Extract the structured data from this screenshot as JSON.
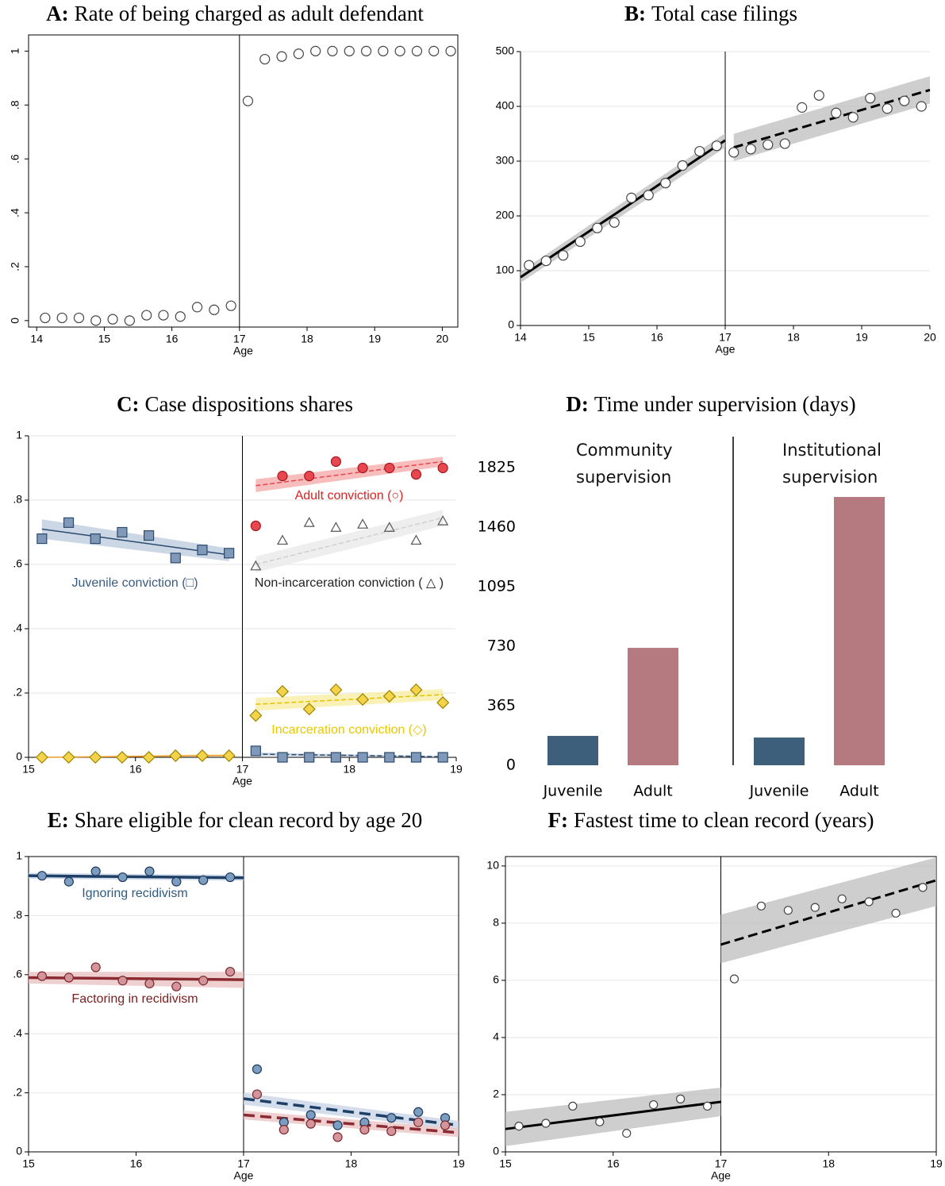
{
  "chart_data": [
    {
      "type": "scatter",
      "label": "A:",
      "title": "Rate of being charged as adult defendant",
      "xlabel": "Age",
      "cutoff": 17,
      "xlim": [
        13.88,
        20.23
      ],
      "ylim": [
        -0.024,
        1.06
      ],
      "xticks": [
        14,
        15,
        16,
        17,
        18,
        19,
        20
      ],
      "yticks": [
        0,
        {
          "value": 0.2,
          "label": ".2"
        },
        {
          "value": 0.4,
          "label": ".4"
        },
        {
          "value": 0.6,
          "label": ".6"
        },
        {
          "value": 0.8,
          "label": ".8"
        },
        1
      ],
      "ytick_rotate": true,
      "grid": false,
      "series": [
        {
          "marker": "circle",
          "color": "#ffffff",
          "stroke": "#444444",
          "x": [
            14.125,
            14.375,
            14.625,
            14.875,
            15.125,
            15.375,
            15.625,
            15.875,
            16.125,
            16.375,
            16.625,
            16.875,
            17.125,
            17.375,
            17.625,
            17.875,
            18.125,
            18.375,
            18.625,
            18.875,
            19.125,
            19.375,
            19.625,
            19.875,
            20.125
          ],
          "values": [
            0.01,
            0.01,
            0.01,
            0,
            0.005,
            0,
            0.02,
            0.02,
            0.015,
            0.05,
            0.04,
            0.055,
            0.815,
            0.97,
            0.98,
            0.99,
            1,
            1,
            1,
            1,
            1,
            1,
            1,
            1,
            1
          ]
        }
      ]
    },
    {
      "type": "scatter",
      "label": "B:",
      "title": "Total case filings",
      "xlabel": "Age",
      "cutoff": 17,
      "xlim": [
        14,
        20
      ],
      "ylim": [
        0,
        500
      ],
      "xticks": [
        14,
        15,
        16,
        17,
        18,
        19,
        20
      ],
      "yticks": [
        0,
        100,
        200,
        300,
        400,
        500
      ],
      "grid": true,
      "series": [
        {
          "marker": "circle",
          "color": "#ffffff",
          "stroke": "#444444",
          "line_color": "#000000",
          "band_color": "#bdbdbd",
          "x": [
            14.125,
            14.375,
            14.625,
            14.875,
            15.125,
            15.375,
            15.625,
            15.875,
            16.125,
            16.375,
            16.625,
            16.875,
            17.125,
            17.375,
            17.625,
            17.875,
            18.125,
            18.375,
            18.625,
            18.875,
            19.125,
            19.375,
            19.625,
            19.875
          ],
          "values": [
            110,
            118,
            128,
            153,
            178,
            188,
            233,
            238,
            260,
            292,
            318,
            328,
            316,
            322,
            330,
            332,
            398,
            420,
            388,
            380,
            415,
            396,
            410,
            400
          ],
          "fits": [
            {
              "x": [
                14,
                17
              ],
              "y": [
                88,
                338
              ],
              "lo": [
                78,
                325
              ],
              "hi": [
                98,
                351
              ]
            },
            {
              "x": [
                17.125,
                20
              ],
              "y": [
                325,
                430
              ],
              "lo": [
                300,
                405
              ],
              "hi": [
                350,
                455
              ],
              "dashed": true
            }
          ]
        }
      ]
    },
    {
      "type": "scatter",
      "label": "C:",
      "title": "Case dispositions shares",
      "xlabel": "Age",
      "cutoff": 17,
      "xlim": [
        15,
        19
      ],
      "ylim": [
        0,
        1
      ],
      "xticks": [
        15,
        16,
        17,
        18,
        19
      ],
      "yticks": [
        0,
        {
          "value": 0.2,
          "label": ".2"
        },
        {
          "value": 0.4,
          "label": ".4"
        },
        {
          "value": 0.6,
          "label": ".6"
        },
        {
          "value": 0.8,
          "label": ".8"
        },
        1
      ],
      "grid": true,
      "series": [
        {
          "name": "Juvenile conviction (□)",
          "marker": "square",
          "color": "#8099b8",
          "stroke": "#2c4a6e",
          "line_color": "#2c4a6e",
          "band_color": "#b9c9dc",
          "label_color": "#3a5a80",
          "x": [
            15.125,
            15.375,
            15.625,
            15.875,
            16.125,
            16.375,
            16.625,
            16.875,
            17.125,
            17.375,
            17.625,
            17.875,
            18.125,
            18.375,
            18.625,
            18.875
          ],
          "values": [
            0.68,
            0.73,
            0.68,
            0.7,
            0.69,
            0.62,
            0.645,
            0.635,
            0.02,
            0,
            0,
            0,
            0,
            0,
            0,
            0
          ],
          "fits": [
            {
              "x": [
                15.125,
                16.875
              ],
              "y": [
                0.71,
                0.63
              ],
              "lo": [
                0.68,
                0.61
              ],
              "hi": [
                0.74,
                0.65
              ]
            },
            {
              "x": [
                17.125,
                18.875
              ],
              "y": [
                0.01,
                0.002
              ],
              "lo": [
                0.005,
                0
              ],
              "hi": [
                0.015,
                0.004
              ],
              "dashed": true
            }
          ]
        },
        {
          "name": "Adult conviction (○)",
          "marker": "circle",
          "color": "#e8474f",
          "stroke": "#a01a20",
          "line_color": "#e8474f",
          "band_color": "#f4a6a6",
          "label_color": "#e02020",
          "x": [
            15.125,
            15.375,
            15.625,
            15.875,
            16.125,
            16.375,
            16.625,
            16.875,
            17.125,
            17.375,
            17.625,
            17.875,
            18.125,
            18.375,
            18.625,
            18.875
          ],
          "values": [
            null,
            null,
            null,
            null,
            null,
            null,
            null,
            null,
            0.72,
            0.875,
            0.875,
            0.92,
            0.9,
            0.9,
            0.88,
            0.9
          ],
          "fits": [
            {
              "x": [
                17.125,
                18.875
              ],
              "y": [
                0.845,
                0.92
              ],
              "lo": [
                0.825,
                0.905
              ],
              "hi": [
                0.865,
                0.935
              ],
              "dashed": true
            }
          ]
        },
        {
          "name": "Non-incarceration conviction ( △ )",
          "marker": "triangle",
          "color": "none",
          "stroke": "#555555",
          "line_color": "#cfcfcf",
          "band_color": "#e8e8e8",
          "label_color": "#222222",
          "x": [
            15.125,
            15.375,
            15.625,
            15.875,
            16.125,
            16.375,
            16.625,
            16.875,
            17.125,
            17.375,
            17.625,
            17.875,
            18.125,
            18.375,
            18.625,
            18.875
          ],
          "values": [
            null,
            null,
            null,
            null,
            null,
            null,
            null,
            null,
            0.595,
            0.675,
            0.73,
            0.715,
            0.725,
            0.715,
            0.675,
            0.735
          ],
          "fits": [
            {
              "x": [
                17.125,
                18.875
              ],
              "y": [
                0.6,
                0.745
              ],
              "lo": [
                0.575,
                0.72
              ],
              "hi": [
                0.625,
                0.77
              ],
              "dashed": true
            }
          ]
        },
        {
          "name": "Incarceration conviction (◇)",
          "marker": "diamond",
          "color": "#f2d34a",
          "stroke": "#a08400",
          "line_color": "#e6c200",
          "band_color": "#f7ec9e",
          "label_color": "#e8c800",
          "x": [
            15.125,
            15.375,
            15.625,
            15.875,
            16.125,
            16.375,
            16.625,
            16.875,
            17.125,
            17.375,
            17.625,
            17.875,
            18.125,
            18.375,
            18.625,
            18.875
          ],
          "values": [
            0,
            0,
            0,
            0,
            0,
            0.005,
            0.005,
            0.005,
            0.13,
            0.205,
            0.15,
            0.21,
            0.18,
            0.19,
            0.21,
            0.17
          ],
          "fits": [
            {
              "x": [
                15.125,
                16.875
              ],
              "y": [
                0,
                0.006
              ],
              "lo": [
                0,
                0.002
              ],
              "hi": [
                0.002,
                0.01
              ],
              "color": "#f29a2e"
            },
            {
              "x": [
                17.125,
                18.875
              ],
              "y": [
                0.165,
                0.195
              ],
              "lo": [
                0.145,
                0.178
              ],
              "hi": [
                0.185,
                0.212
              ],
              "dashed": true
            }
          ]
        }
      ]
    },
    {
      "type": "bar",
      "label": "D:",
      "title": "Time under supervision (days)",
      "categories": [
        "Community supervision",
        "Institutional supervision"
      ],
      "ylim": [
        0,
        2015
      ],
      "yticks": [
        0,
        365,
        730,
        1095,
        1460,
        1825
      ],
      "series": [
        {
          "name": "Juvenile",
          "color": "#3d5f7c",
          "values": [
            180,
            170
          ]
        },
        {
          "name": "Adult",
          "color": "#b47a80",
          "values": [
            720,
            1645
          ]
        }
      ]
    },
    {
      "type": "scatter",
      "label": "E:",
      "title": "Share eligible for clean record by age 20",
      "xlabel": "Age",
      "cutoff": 17,
      "xlim": [
        15,
        19
      ],
      "ylim": [
        0,
        1
      ],
      "xticks": [
        15,
        16,
        17,
        18,
        19
      ],
      "yticks": [
        0,
        {
          "value": 0.2,
          "label": ".2"
        },
        {
          "value": 0.4,
          "label": ".4"
        },
        {
          "value": 0.6,
          "label": ".6"
        },
        {
          "value": 0.8,
          "label": ".8"
        },
        1
      ],
      "grid": true,
      "series": [
        {
          "name": "Ignoring recidivism",
          "marker": "circle",
          "color": "#7c9cc0",
          "stroke": "#1e3a5c",
          "line_color": "#1e3f66",
          "band_color": "#c4d2e4",
          "label_color": "#2e5a80",
          "x": [
            15.125,
            15.375,
            15.625,
            15.875,
            16.125,
            16.375,
            16.625,
            16.875,
            17.125,
            17.375,
            17.625,
            17.875,
            18.125,
            18.375,
            18.625,
            18.875
          ],
          "values": [
            0.935,
            0.915,
            0.95,
            0.93,
            0.95,
            0.915,
            0.92,
            0.93,
            0.28,
            0.1,
            0.125,
            0.09,
            0.1,
            0.115,
            0.135,
            0.115
          ],
          "fits": [
            {
              "x": [
                15,
                17
              ],
              "y": [
                0.935,
                0.928
              ],
              "lo": [
                0.925,
                0.918
              ],
              "hi": [
                0.945,
                0.938
              ]
            },
            {
              "x": [
                17,
                19
              ],
              "y": [
                0.18,
                0.09
              ],
              "lo": [
                0.16,
                0.075
              ],
              "hi": [
                0.2,
                0.105
              ],
              "dashed": true
            }
          ]
        },
        {
          "name": "Factoring in recidivism",
          "marker": "circle",
          "color": "#d4959a",
          "stroke": "#7a2a2e",
          "line_color": "#8b2a30",
          "band_color": "#eac0c2",
          "label_color": "#7a2020",
          "x": [
            15.125,
            15.375,
            15.625,
            15.875,
            16.125,
            16.375,
            16.625,
            16.875,
            17.125,
            17.375,
            17.625,
            17.875,
            18.125,
            18.375,
            18.625,
            18.875
          ],
          "values": [
            0.595,
            0.59,
            0.625,
            0.58,
            0.57,
            0.56,
            0.58,
            0.61,
            0.195,
            0.075,
            0.095,
            0.05,
            0.075,
            0.07,
            0.1,
            0.09
          ],
          "fits": [
            {
              "x": [
                15,
                17
              ],
              "y": [
                0.59,
                0.583
              ],
              "lo": [
                0.57,
                0.555
              ],
              "hi": [
                0.61,
                0.61
              ]
            },
            {
              "x": [
                17,
                19
              ],
              "y": [
                0.125,
                0.065
              ],
              "lo": [
                0.11,
                0.05
              ],
              "hi": [
                0.14,
                0.08
              ],
              "dashed": true
            }
          ]
        }
      ]
    },
    {
      "type": "scatter",
      "label": "F:",
      "title": "Fastest time to clean record (years)",
      "xlabel": "Age",
      "cutoff": 17,
      "xlim": [
        15,
        19
      ],
      "ylim": [
        0,
        10.33
      ],
      "xticks": [
        15,
        16,
        17,
        18,
        19
      ],
      "yticks": [
        0,
        2,
        4,
        6,
        8,
        10
      ],
      "grid": true,
      "series": [
        {
          "marker": "circle",
          "color": "#ffffff",
          "stroke": "#444444",
          "line_color": "#000000",
          "band_color": "#bdbdbd",
          "x": [
            15.125,
            15.375,
            15.625,
            15.875,
            16.125,
            16.375,
            16.625,
            16.875,
            17.125,
            17.375,
            17.625,
            17.875,
            18.125,
            18.375,
            18.625,
            18.875
          ],
          "values": [
            0.9,
            1.0,
            1.6,
            1.05,
            0.65,
            1.65,
            1.85,
            1.6,
            6.05,
            8.6,
            8.45,
            8.55,
            8.85,
            8.75,
            8.35,
            9.25
          ],
          "fits": [
            {
              "x": [
                15,
                17
              ],
              "y": [
                0.8,
                1.75
              ],
              "lo": [
                0.2,
                1.25
              ],
              "hi": [
                1.4,
                2.25
              ]
            },
            {
              "x": [
                17,
                19
              ],
              "y": [
                7.25,
                9.5
              ],
              "lo": [
                6.6,
                8.6
              ],
              "hi": [
                8.3,
                10.3
              ],
              "dashed": true
            }
          ]
        }
      ]
    }
  ]
}
